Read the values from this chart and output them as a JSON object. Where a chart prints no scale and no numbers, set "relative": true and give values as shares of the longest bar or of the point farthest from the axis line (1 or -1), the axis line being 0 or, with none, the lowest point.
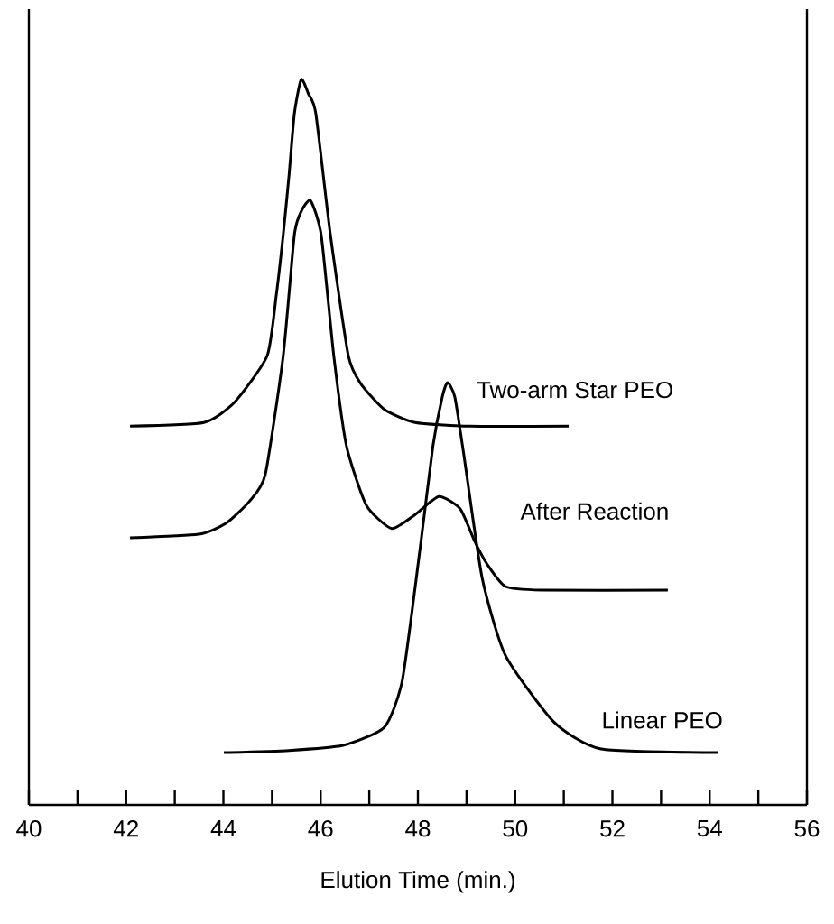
{
  "chart_data": {
    "type": "line",
    "relative": true,
    "xlabel": "Elution Time (min.)",
    "xlim": [
      40,
      56
    ],
    "xticks": [
      40,
      {
        "value": 41,
        "label": null
      },
      42,
      {
        "value": 43,
        "label": null
      },
      44,
      {
        "value": 45,
        "label": null
      },
      46,
      {
        "value": 47,
        "label": null
      },
      48,
      {
        "value": 49,
        "label": null
      },
      50,
      {
        "value": 51,
        "label": null
      },
      52,
      {
        "value": 53,
        "label": null
      },
      54,
      {
        "value": 55,
        "label": null
      },
      56
    ],
    "series": [
      {
        "name": "Two-arm Star PEO",
        "color": "#000000",
        "x": [
          42.08,
          43.6,
          44.23,
          44.9,
          45.09,
          45.23,
          45.35,
          45.46,
          45.6,
          45.75,
          45.9,
          46.2,
          46.57,
          46.83,
          47.31,
          47.94,
          49.06,
          51.1
        ],
        "values": [
          0.522,
          0.527,
          0.555,
          0.619,
          0.704,
          0.786,
          0.868,
          0.953,
          1.0,
          0.98,
          0.953,
          0.786,
          0.619,
          0.58,
          0.545,
          0.527,
          0.522,
          0.522
        ]
      },
      {
        "name": "After Reaction",
        "color": "#000000",
        "x": [
          42.08,
          43.49,
          44.05,
          44.53,
          44.86,
          45.23,
          45.46,
          45.6,
          45.79,
          46.01,
          46.27,
          46.53,
          46.94,
          47.46,
          47.94,
          48.43,
          48.87,
          49.17,
          49.43,
          49.8,
          50.54,
          53.14
        ],
        "values": [
          0.368,
          0.373,
          0.388,
          0.418,
          0.455,
          0.619,
          0.786,
          0.818,
          0.833,
          0.786,
          0.619,
          0.495,
          0.413,
          0.381,
          0.4,
          0.425,
          0.408,
          0.363,
          0.331,
          0.301,
          0.296,
          0.296
        ]
      },
      {
        "name": "Linear PEO",
        "color": "#000000",
        "x": [
          44.01,
          45.35,
          46.46,
          47.31,
          47.68,
          48.05,
          48.31,
          48.5,
          48.61,
          48.76,
          48.95,
          49.32,
          49.8,
          50.8,
          51.77,
          54.18
        ],
        "values": [
          0.072,
          0.075,
          0.082,
          0.107,
          0.172,
          0.356,
          0.495,
          0.562,
          0.582,
          0.562,
          0.48,
          0.313,
          0.206,
          0.114,
          0.077,
          0.072
        ]
      }
    ]
  }
}
